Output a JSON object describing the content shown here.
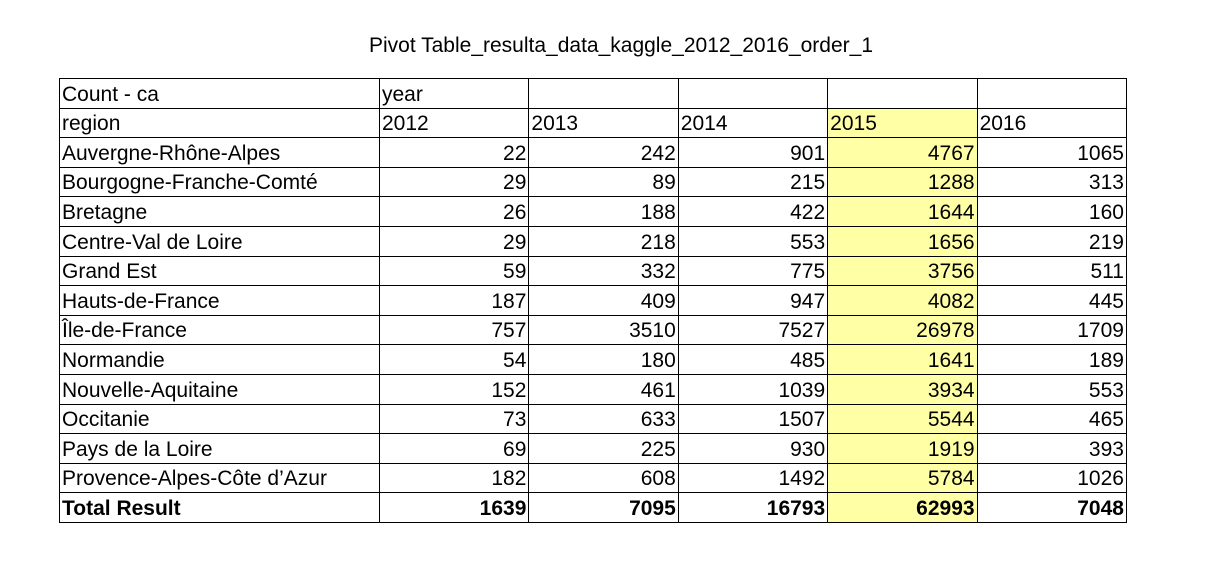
{
  "title": "Pivot Table_resulta_data_kaggle_2012_2016_order_1",
  "header": {
    "measure": "Count - ca",
    "column_field": "year",
    "row_field": "region",
    "years": [
      "2012",
      "2013",
      "2014",
      "2015",
      "2016"
    ]
  },
  "highlight_color": "#ffffa6",
  "rows": [
    {
      "region": "Auvergne-Rhône-Alpes",
      "values": [
        "22",
        "242",
        "901",
        "4767",
        "1065"
      ]
    },
    {
      "region": "Bourgogne-Franche-Comté",
      "values": [
        "29",
        "89",
        "215",
        "1288",
        "313"
      ]
    },
    {
      "region": "Bretagne",
      "values": [
        "26",
        "188",
        "422",
        "1644",
        "160"
      ]
    },
    {
      "region": "Centre-Val de Loire",
      "values": [
        "29",
        "218",
        "553",
        "1656",
        "219"
      ]
    },
    {
      "region": "Grand Est",
      "values": [
        "59",
        "332",
        "775",
        "3756",
        "511"
      ]
    },
    {
      "region": "Hauts-de-France",
      "values": [
        "187",
        "409",
        "947",
        "4082",
        "445"
      ]
    },
    {
      "region": "Île-de-France",
      "values": [
        "757",
        "3510",
        "7527",
        "26978",
        "1709"
      ]
    },
    {
      "region": "Normandie",
      "values": [
        "54",
        "180",
        "485",
        "1641",
        "189"
      ]
    },
    {
      "region": "Nouvelle-Aquitaine",
      "values": [
        "152",
        "461",
        "1039",
        "3934",
        "553"
      ]
    },
    {
      "region": "Occitanie",
      "values": [
        "73",
        "633",
        "1507",
        "5544",
        "465"
      ]
    },
    {
      "region": "Pays de la Loire",
      "values": [
        "69",
        "225",
        "930",
        "1919",
        "393"
      ]
    },
    {
      "region": "Provence-Alpes-Côte d’Azur",
      "values": [
        "182",
        "608",
        "1492",
        "5784",
        "1026"
      ]
    }
  ],
  "total": {
    "label": "Total Result",
    "values": [
      "1639",
      "7095",
      "16793",
      "62993",
      "7048"
    ]
  }
}
